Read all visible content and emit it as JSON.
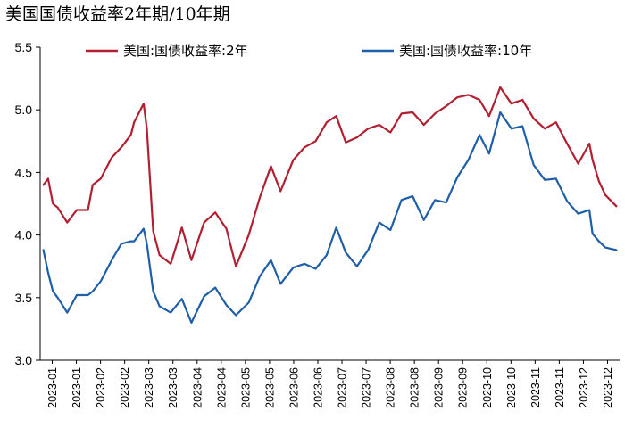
{
  "chart_data": {
    "type": "line",
    "title": "美国国债收益率2年期/10年期",
    "xlabel": "",
    "ylabel": "",
    "ylim": [
      3.0,
      5.5
    ],
    "yticks": [
      "3.0",
      "3.5",
      "4.0",
      "4.5",
      "5.0",
      "5.5"
    ],
    "xticks": [
      "2023-01",
      "2023-01",
      "2023-02",
      "2023-02",
      "2023-03",
      "2023-03",
      "2023-04",
      "2023-04",
      "2023-05",
      "2023-05",
      "2023-06",
      "2023-06",
      "2023-07",
      "2023-07",
      "2023-08",
      "2023-08",
      "2023-09",
      "2023-09",
      "2023-10",
      "2023-10",
      "2023-11",
      "2023-11",
      "2023-12",
      "2023-12"
    ],
    "legend_position": "top",
    "grid": false,
    "series": [
      {
        "name": "美国:国债收益率:2年",
        "color": "#B11F30",
        "x": [
          "2023-01-03",
          "2023-01-06",
          "2023-01-09",
          "2023-01-12",
          "2023-01-18",
          "2023-01-24",
          "2023-01-31",
          "2023-02-03",
          "2023-02-08",
          "2023-02-15",
          "2023-02-21",
          "2023-02-27",
          "2023-03-01",
          "2023-03-07",
          "2023-03-09",
          "2023-03-13",
          "2023-03-17",
          "2023-03-24",
          "2023-03-31",
          "2023-04-06",
          "2023-04-14",
          "2023-04-21",
          "2023-04-28",
          "2023-05-04",
          "2023-05-12",
          "2023-05-19",
          "2023-05-26",
          "2023-06-01",
          "2023-06-09",
          "2023-06-16",
          "2023-06-23",
          "2023-06-30",
          "2023-07-06",
          "2023-07-12",
          "2023-07-19",
          "2023-07-26",
          "2023-08-02",
          "2023-08-09",
          "2023-08-16",
          "2023-08-23",
          "2023-08-30",
          "2023-09-06",
          "2023-09-13",
          "2023-09-20",
          "2023-09-27",
          "2023-10-04",
          "2023-10-10",
          "2023-10-17",
          "2023-10-24",
          "2023-10-31",
          "2023-11-07",
          "2023-11-14",
          "2023-11-21",
          "2023-11-28",
          "2023-12-05",
          "2023-12-12",
          "2023-12-14",
          "2023-12-18",
          "2023-12-22",
          "2023-12-29"
        ],
        "values": [
          4.4,
          4.45,
          4.25,
          4.22,
          4.1,
          4.2,
          4.2,
          4.4,
          4.45,
          4.62,
          4.7,
          4.8,
          4.9,
          5.05,
          4.85,
          4.03,
          3.84,
          3.77,
          4.06,
          3.8,
          4.1,
          4.18,
          4.05,
          3.75,
          4.0,
          4.3,
          4.55,
          4.35,
          4.6,
          4.7,
          4.75,
          4.9,
          4.95,
          4.74,
          4.78,
          4.85,
          4.88,
          4.82,
          4.97,
          4.98,
          4.88,
          4.97,
          5.03,
          5.1,
          5.12,
          5.08,
          4.95,
          5.18,
          5.05,
          5.08,
          4.93,
          4.85,
          4.9,
          4.73,
          4.57,
          4.73,
          4.6,
          4.43,
          4.32,
          4.23
        ]
      },
      {
        "name": "美国:国债收益率:10年",
        "color": "#1F5EA8",
        "x": [
          "2023-01-03",
          "2023-01-06",
          "2023-01-09",
          "2023-01-12",
          "2023-01-18",
          "2023-01-24",
          "2023-01-31",
          "2023-02-03",
          "2023-02-08",
          "2023-02-15",
          "2023-02-21",
          "2023-02-27",
          "2023-03-01",
          "2023-03-07",
          "2023-03-09",
          "2023-03-13",
          "2023-03-17",
          "2023-03-24",
          "2023-03-31",
          "2023-04-06",
          "2023-04-14",
          "2023-04-21",
          "2023-04-28",
          "2023-05-04",
          "2023-05-12",
          "2023-05-19",
          "2023-05-26",
          "2023-06-01",
          "2023-06-09",
          "2023-06-16",
          "2023-06-23",
          "2023-06-30",
          "2023-07-06",
          "2023-07-12",
          "2023-07-19",
          "2023-07-26",
          "2023-08-02",
          "2023-08-09",
          "2023-08-16",
          "2023-08-23",
          "2023-08-30",
          "2023-09-06",
          "2023-09-13",
          "2023-09-20",
          "2023-09-27",
          "2023-10-04",
          "2023-10-10",
          "2023-10-17",
          "2023-10-24",
          "2023-10-31",
          "2023-11-07",
          "2023-11-14",
          "2023-11-21",
          "2023-11-28",
          "2023-12-05",
          "2023-12-12",
          "2023-12-14",
          "2023-12-18",
          "2023-12-22",
          "2023-12-29"
        ],
        "values": [
          3.88,
          3.7,
          3.55,
          3.5,
          3.38,
          3.52,
          3.52,
          3.55,
          3.63,
          3.8,
          3.93,
          3.95,
          3.95,
          4.05,
          3.93,
          3.55,
          3.43,
          3.38,
          3.49,
          3.3,
          3.51,
          3.58,
          3.44,
          3.36,
          3.46,
          3.67,
          3.8,
          3.61,
          3.74,
          3.77,
          3.73,
          3.84,
          4.06,
          3.86,
          3.75,
          3.88,
          4.1,
          4.04,
          4.28,
          4.31,
          4.12,
          4.28,
          4.26,
          4.46,
          4.6,
          4.8,
          4.65,
          4.98,
          4.85,
          4.87,
          4.56,
          4.44,
          4.45,
          4.27,
          4.17,
          4.2,
          4.01,
          3.95,
          3.9,
          3.88
        ]
      }
    ]
  }
}
